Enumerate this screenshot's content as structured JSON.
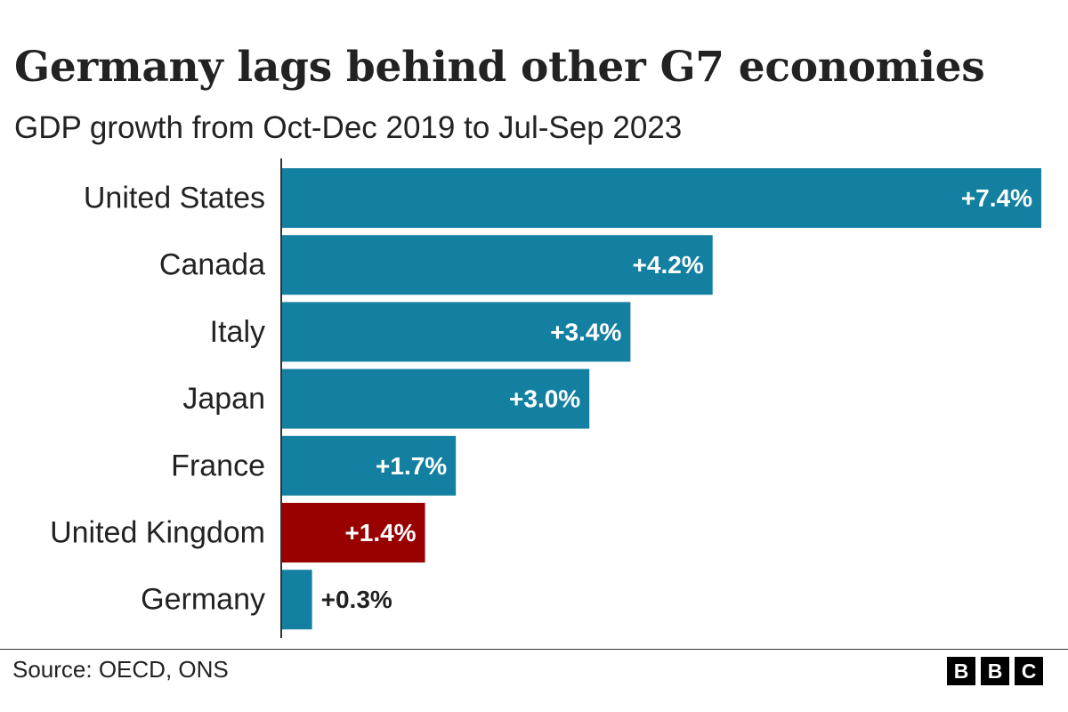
{
  "title": "Germany lags behind other G7 economies",
  "subtitle": "GDP growth from Oct-Dec 2019 to Jul-Sep 2023",
  "source": "Source: OECD, ONS",
  "logo": {
    "letters": [
      "B",
      "B",
      "C"
    ]
  },
  "colors": {
    "bar": "#1380A1",
    "highlight": "#990000",
    "text": "#222222",
    "label_inside": "#ffffff"
  },
  "chart_data": {
    "type": "bar",
    "orientation": "horizontal",
    "categories": [
      "United States",
      "Canada",
      "Italy",
      "Japan",
      "France",
      "United Kingdom",
      "Germany"
    ],
    "values": [
      7.4,
      4.2,
      3.4,
      3.0,
      1.7,
      1.4,
      0.3
    ],
    "value_labels": [
      "+7.4%",
      "+4.2%",
      "+3.4%",
      "+3.0%",
      "+1.7%",
      "+1.4%",
      "+0.3%"
    ],
    "highlight": "United Kingdom",
    "xlim": [
      0,
      7.4
    ],
    "grid": false,
    "legend": "none"
  }
}
